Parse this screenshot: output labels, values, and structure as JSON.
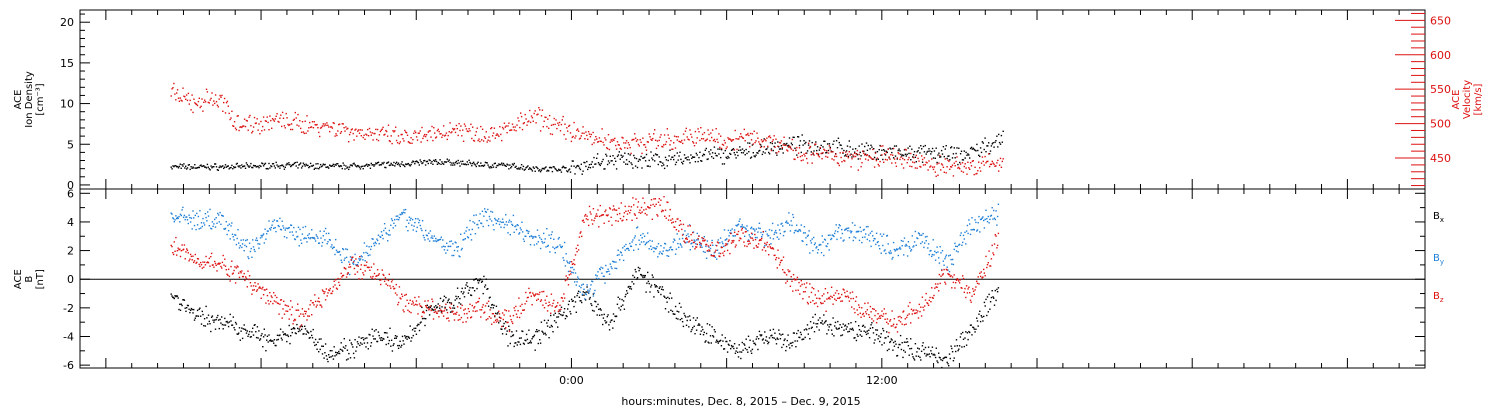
{
  "chart_data": [
    {
      "type": "scatter",
      "panel": "top",
      "left_axis": {
        "label_lines": [
          "ACE",
          "Ion Density",
          "[cm⁻³]"
        ],
        "ylim": [
          -0.5,
          21.5
        ],
        "ticks": [
          0,
          5,
          10,
          15,
          20
        ],
        "color": "#000000"
      },
      "right_axis": {
        "label_lines": [
          "ACE",
          "Velocity",
          "[km/s]"
        ],
        "ylim": [
          405,
          665
        ],
        "ticks": [
          450,
          500,
          550,
          600,
          650
        ],
        "color": "#dd1111"
      },
      "series": [
        {
          "axis": "left",
          "color": "#000000",
          "x": [
            -15.5,
            -14.5,
            -13,
            -11.5,
            -10,
            -8.5,
            -7,
            -6,
            -5,
            -4,
            -3,
            -2,
            -1,
            0,
            1,
            2,
            3,
            4,
            5,
            6,
            7,
            8,
            9,
            10,
            11,
            12,
            13,
            14,
            15,
            16,
            16.7
          ],
          "y": [
            2.3,
            2.3,
            2.3,
            2.5,
            2.4,
            2.4,
            2.6,
            2.8,
            2.9,
            2.7,
            2.5,
            2.3,
            2.0,
            2.1,
            2.9,
            3.2,
            3.0,
            3.2,
            3.6,
            3.8,
            4.2,
            4.8,
            5.0,
            4.8,
            4.2,
            4.1,
            3.8,
            4.0,
            3.6,
            4.8,
            5.8
          ]
        },
        {
          "axis": "right",
          "color": "#dd1111",
          "x": [
            -15.5,
            -15,
            -14.5,
            -14,
            -13.5,
            -13,
            -12.5,
            -11.5,
            -10.5,
            -9.5,
            -8.5,
            -7.5,
            -6.5,
            -5.5,
            -4.5,
            -3.5,
            -2.5,
            -1.5,
            -1,
            0,
            1,
            2,
            3,
            4,
            5,
            6,
            7,
            8,
            9,
            10,
            11,
            12,
            13,
            14,
            15,
            16,
            16.7
          ],
          "y": [
            546,
            535,
            530,
            538,
            530,
            505,
            500,
            505,
            500,
            498,
            490,
            485,
            478,
            482,
            495,
            485,
            492,
            510,
            505,
            490,
            478,
            472,
            475,
            478,
            483,
            478,
            480,
            472,
            458,
            455,
            450,
            452,
            447,
            440,
            438,
            440,
            448
          ]
        }
      ]
    },
    {
      "type": "scatter",
      "panel": "bottom",
      "left_axis": {
        "label_lines": [
          "ACE",
          "B",
          "[nT]"
        ],
        "ylim": [
          -6.2,
          6.3
        ],
        "ticks": [
          -6,
          -4,
          -2,
          0,
          2,
          4,
          6
        ],
        "color": "#000000"
      },
      "legend": [
        {
          "label": "B",
          "sub": "x",
          "color": "#000000"
        },
        {
          "label": "B",
          "sub": "y",
          "color": "#1f7fd6"
        },
        {
          "label": "B",
          "sub": "z",
          "color": "#dd1111"
        }
      ],
      "series": [
        {
          "name_key": "x",
          "color": "#000000",
          "x": [
            -15.5,
            -14.5,
            -13.5,
            -12.5,
            -11.5,
            -10.5,
            -9.5,
            -8.5,
            -7.5,
            -6.5,
            -5.5,
            -4.5,
            -3.5,
            -2.5,
            -1.5,
            -0.5,
            0.5,
            1.5,
            2.5,
            3.5,
            4.5,
            5.5,
            6.5,
            7.5,
            8.5,
            9.5,
            10.5,
            11.5,
            12.5,
            13.5,
            14.5,
            15.5,
            16.5
          ],
          "y": [
            -1.0,
            -2.5,
            -3.0,
            -3.5,
            -4.5,
            -3.2,
            -5.0,
            -4.8,
            -4.0,
            -4.5,
            -2.0,
            -1.5,
            0,
            -4.0,
            -4.2,
            -2.5,
            -1.0,
            -3.0,
            0.5,
            -1.0,
            -3.0,
            -4.0,
            -5.0,
            -4.0,
            -4.5,
            -3.0,
            -3.5,
            -3.5,
            -4.5,
            -5.0,
            -5.5,
            -3.5,
            -0.5
          ]
        },
        {
          "name_key": "y",
          "color": "#1f7fd6",
          "x": [
            -15.5,
            -14.5,
            -13.5,
            -12.5,
            -11.5,
            -10.5,
            -9.5,
            -8.5,
            -7.5,
            -6.5,
            -5.5,
            -4.5,
            -3.5,
            -2.5,
            -1.5,
            -0.5,
            0.5,
            1.5,
            2.5,
            3.5,
            4.5,
            5.5,
            6.5,
            7.5,
            8.5,
            9.5,
            10.5,
            11.5,
            12.5,
            13.5,
            14.5,
            15.5,
            16.5
          ],
          "y": [
            4.5,
            4.2,
            4.0,
            2.0,
            4.0,
            3.0,
            3.0,
            1.0,
            3.0,
            4.5,
            3.0,
            2.0,
            4.5,
            4.0,
            3.0,
            2.5,
            -1.0,
            1.0,
            3.0,
            2.0,
            3.0,
            2.0,
            3.8,
            3.0,
            4.0,
            2.0,
            3.5,
            3.0,
            2.0,
            3.0,
            1.0,
            4.0,
            4.5
          ]
        },
        {
          "name_key": "z",
          "color": "#dd1111",
          "x": [
            -15.5,
            -14.5,
            -13.5,
            -12.5,
            -11.5,
            -10.5,
            -9.5,
            -8.5,
            -7.5,
            -6.5,
            -5.5,
            -4.5,
            -3.5,
            -2.5,
            -1.5,
            -0.5,
            0.5,
            1.5,
            2.5,
            3.5,
            4.5,
            5.5,
            6.5,
            7.5,
            8.5,
            9.5,
            10.5,
            11.5,
            12.5,
            13.5,
            14.5,
            15.5,
            16.5
          ],
          "y": [
            2.5,
            1.5,
            1.0,
            0,
            -1.5,
            -2.5,
            -1.0,
            1.0,
            0.5,
            -1.5,
            -2.0,
            -2.5,
            -2.0,
            -3.0,
            -1.0,
            -2.0,
            4.3,
            4.5,
            5.0,
            5.1,
            3.0,
            2.0,
            3.0,
            2.5,
            0,
            -1.5,
            -1.0,
            -2.5,
            -3.0,
            -2.0,
            0.5,
            -1.0,
            3.0
          ]
        }
      ]
    }
  ],
  "x_axis": {
    "range_hours": [
      -19.0,
      33.0
    ],
    "tick_labels": [
      {
        "hour": 0,
        "label": "0:00"
      },
      {
        "hour": 12,
        "label": "12:00"
      }
    ],
    "title": "hours:minutes, Dec.  8, 2015 – Dec.  9, 2015"
  }
}
